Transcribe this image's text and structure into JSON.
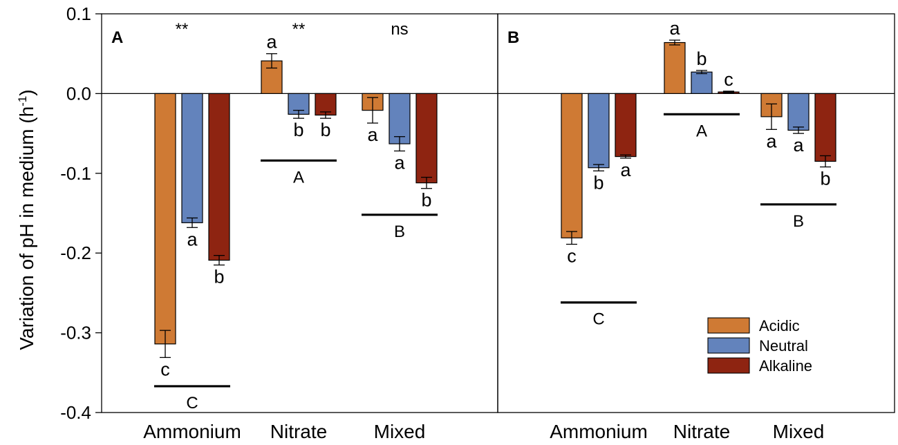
{
  "chart_data": {
    "type": "bar",
    "ylabel_main": "Variation of pH in medium (h",
    "ylabel_sup": "-1",
    "ylabel_close": ")",
    "ylim": [
      -0.4,
      0.1
    ],
    "yticks": [
      "0.1",
      "0.0",
      "-0.1",
      "-0.2",
      "-0.3",
      "-0.4"
    ],
    "ytick_values": [
      0.1,
      0.0,
      -0.1,
      -0.2,
      -0.3,
      -0.4
    ],
    "categories": [
      "Ammonium",
      "Nitrate",
      "Mixed"
    ],
    "colors": {
      "Acidic": "#CF7A34",
      "Neutral": "#6383BC",
      "Alkaline": "#8E2411",
      "edge": "#000000"
    },
    "legend": {
      "position": "bottom-right of panel B",
      "entries": [
        {
          "name": "Acidic",
          "color": "#CF7A34"
        },
        {
          "name": "Neutral",
          "color": "#6383BC"
        },
        {
          "name": "Alkaline",
          "color": "#8E2411"
        }
      ]
    },
    "panels": [
      {
        "label": "A",
        "significance": [
          "**",
          "**",
          "ns"
        ],
        "series": [
          {
            "name": "Acidic",
            "values": [
              -0.314,
              0.041,
              -0.021
            ],
            "errors": [
              0.017,
              0.009,
              0.016
            ],
            "letters": [
              "c",
              "a",
              "a"
            ]
          },
          {
            "name": "Neutral",
            "values": [
              -0.162,
              -0.026,
              -0.063
            ],
            "errors": [
              0.006,
              0.005,
              0.009
            ],
            "letters": [
              "a",
              "b",
              "a"
            ]
          },
          {
            "name": "Alkaline",
            "values": [
              -0.209,
              -0.027,
              -0.112
            ],
            "errors": [
              0.006,
              0.004,
              0.007
            ],
            "letters": [
              "b",
              "b",
              "b"
            ]
          }
        ],
        "group_letters": [
          "C",
          "A",
          "B"
        ],
        "group_line_values": [
          -0.367,
          -0.084,
          -0.152
        ]
      },
      {
        "label": "B",
        "significance": [
          "",
          "",
          ""
        ],
        "series": [
          {
            "name": "Acidic",
            "values": [
              -0.181,
              0.064,
              -0.029
            ],
            "errors": [
              0.008,
              0.003,
              0.016
            ],
            "letters": [
              "c",
              "a",
              "a"
            ]
          },
          {
            "name": "Neutral",
            "values": [
              -0.093,
              0.027,
              -0.046
            ],
            "errors": [
              0.004,
              0.002,
              0.004
            ],
            "letters": [
              "b",
              "b",
              "a"
            ]
          },
          {
            "name": "Alkaline",
            "values": [
              -0.079,
              0.002,
              -0.085
            ],
            "errors": [
              0.002,
              0.001,
              0.007
            ],
            "letters": [
              "a",
              "c",
              "b"
            ]
          }
        ],
        "group_letters": [
          "C",
          "A",
          "B"
        ],
        "group_line_values": [
          -0.262,
          -0.026,
          -0.139
        ]
      }
    ]
  }
}
